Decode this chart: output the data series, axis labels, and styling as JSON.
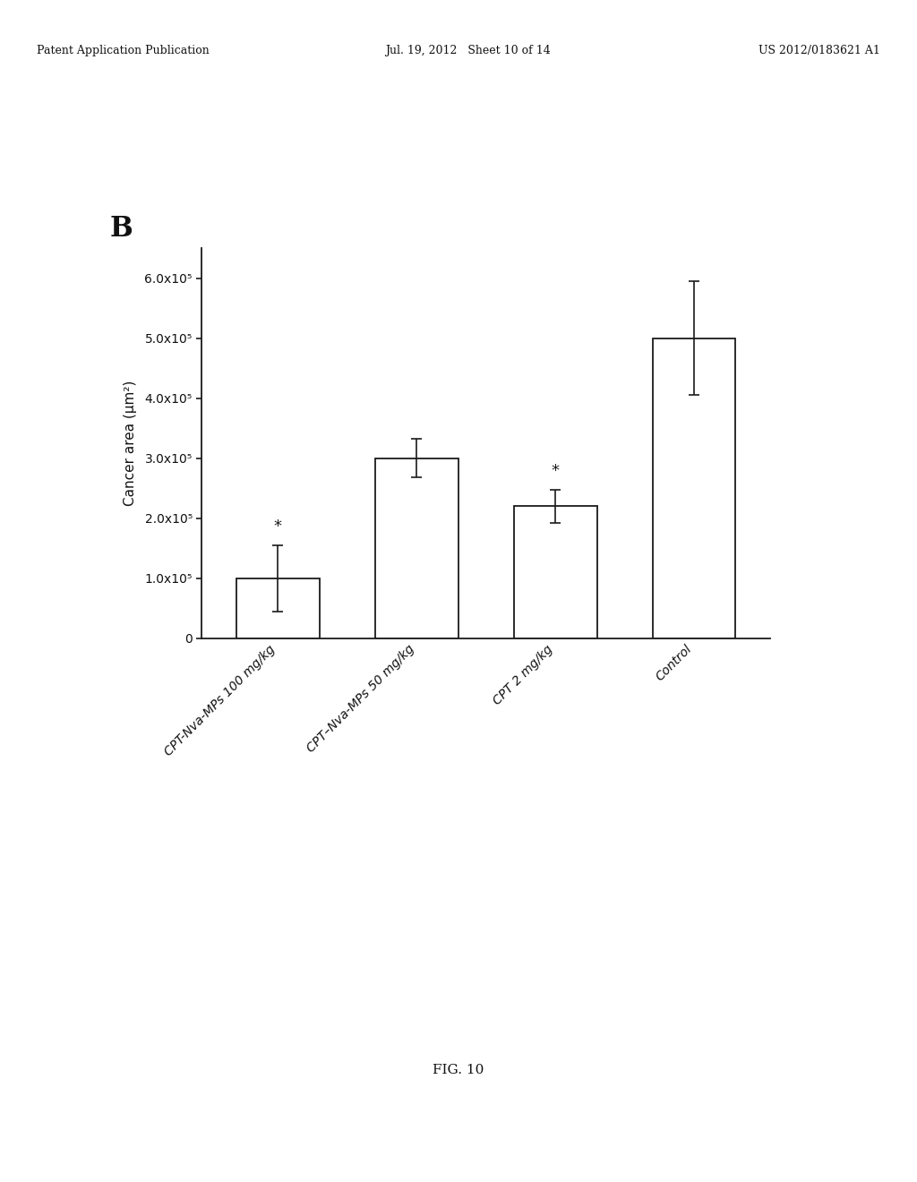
{
  "categories": [
    "CPT-Nva-MPs 100 mg/kg",
    "CPT–Nva-MPs 50 mg/kg",
    "CPT 2 mg/kg",
    "Control"
  ],
  "values": [
    100000.0,
    300000.0,
    220000.0,
    500000.0
  ],
  "errors": [
    55000.0,
    32000.0,
    28000.0,
    95000.0
  ],
  "bar_color": "#ffffff",
  "bar_edgecolor": "#1a1a1a",
  "ylabel": "Cancer area (μm²)",
  "ylim": [
    0,
    650000.0
  ],
  "yticks": [
    0,
    100000.0,
    200000.0,
    300000.0,
    400000.0,
    500000.0,
    600000.0
  ],
  "ytick_labels": [
    "0",
    "1.0x10⁵",
    "2.0x10⁵",
    "3.0x10⁵",
    "4.0x10⁵",
    "5.0x10⁵",
    "6.0x10⁵"
  ],
  "sig_markers": [
    true,
    false,
    true,
    false
  ],
  "panel_label": "B",
  "fig_label": "FIG. 10",
  "header_left": "Patent Application Publication",
  "header_mid": "Jul. 19, 2012   Sheet 10 of 14",
  "header_right": "US 2012/0183621 A1",
  "background_color": "#ffffff",
  "bar_width": 0.6,
  "axis_fontsize": 11,
  "tick_fontsize": 10,
  "header_fontsize": 9
}
